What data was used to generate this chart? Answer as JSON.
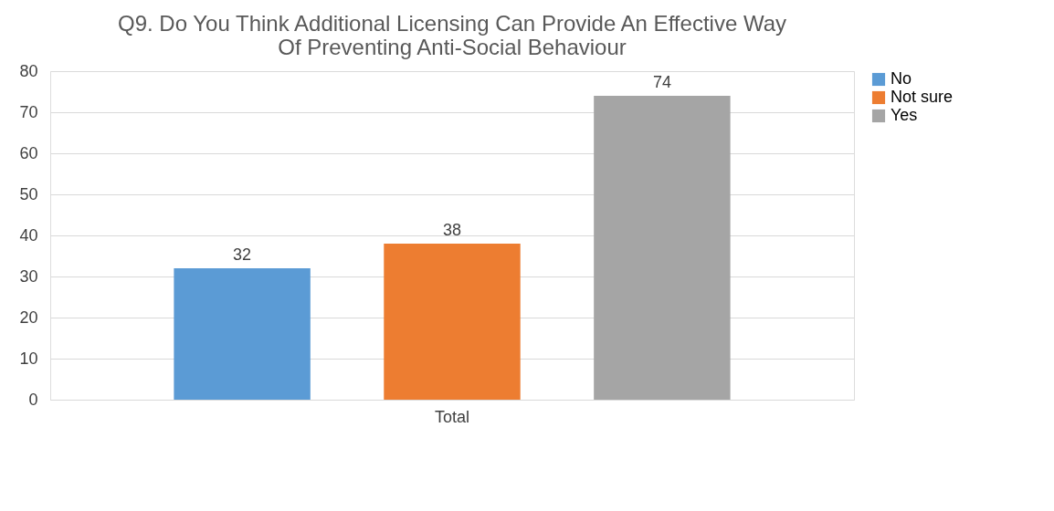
{
  "chart_data": {
    "type": "bar",
    "title": "Q9. Do You Think Additional Licensing Can Provide An Effective Way Of Preventing Anti-Social Behaviour",
    "categories": [
      "Total"
    ],
    "series": [
      {
        "name": "No",
        "color": "#5b9bd5",
        "values": [
          32
        ]
      },
      {
        "name": "Not sure",
        "color": "#ed7d31",
        "values": [
          38
        ]
      },
      {
        "name": "Yes",
        "color": "#a5a5a5",
        "values": [
          74
        ]
      }
    ],
    "ylim": [
      0,
      80
    ],
    "yticks": [
      0,
      10,
      20,
      30,
      40,
      50,
      60,
      70,
      80
    ],
    "grid": "y",
    "legend": "right",
    "data_labels": true
  }
}
